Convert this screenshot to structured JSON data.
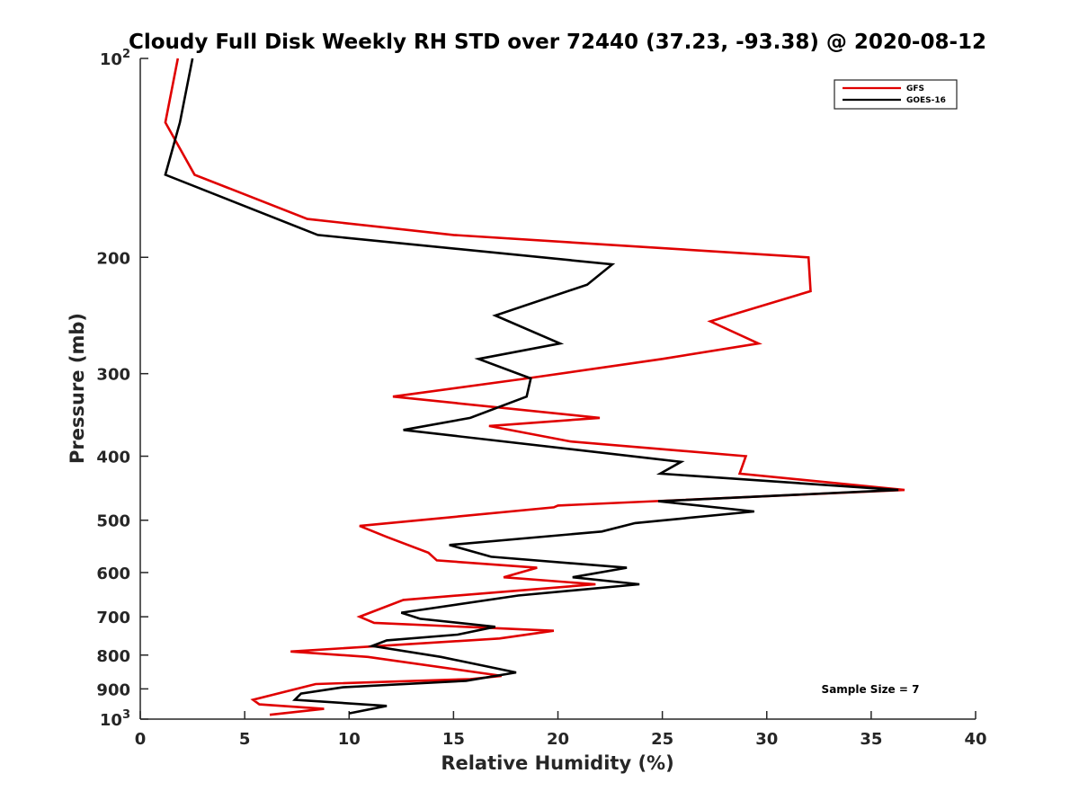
{
  "chart_data": {
    "type": "line",
    "title": "Cloudy Full Disk Weekly RH STD over 72440 (37.23, -93.38) @ 2020-08-12",
    "xlabel": "Relative Humidity (%)",
    "ylabel": "Pressure (mb)",
    "xlim": [
      0,
      40
    ],
    "ylim": [
      100,
      1000
    ],
    "y_scale": "log",
    "y_reversed": true,
    "x_ticks": [
      "0",
      "5",
      "10",
      "15",
      "20",
      "25",
      "30",
      "35",
      "40"
    ],
    "y_ticks": [
      {
        "value": 100,
        "base": "10",
        "exp": "2"
      },
      {
        "value": 200,
        "label": "200"
      },
      {
        "value": 300,
        "label": "300"
      },
      {
        "value": 400,
        "label": "400"
      },
      {
        "value": 500,
        "label": "500"
      },
      {
        "value": 600,
        "label": "600"
      },
      {
        "value": 700,
        "label": "700"
      },
      {
        "value": 800,
        "label": "800"
      },
      {
        "value": 900,
        "label": "900"
      },
      {
        "value": 1000,
        "base": "10",
        "exp": "3"
      }
    ],
    "legend_position": "top-right",
    "grid": false,
    "annotation": "Sample Size = 7",
    "series": [
      {
        "name": "GFS",
        "color": "#e00000",
        "points": [
          [
            1.8,
            100
          ],
          [
            1.2,
            125
          ],
          [
            2.6,
            150
          ],
          [
            8.0,
            175
          ],
          [
            15.0,
            185
          ],
          [
            32.0,
            200
          ],
          [
            32.1,
            225
          ],
          [
            27.3,
            250
          ],
          [
            29.6,
            270
          ],
          [
            25.0,
            285
          ],
          [
            18.5,
            305
          ],
          [
            12.1,
            325
          ],
          [
            22.0,
            350
          ],
          [
            16.7,
            360
          ],
          [
            20.6,
            380
          ],
          [
            29.0,
            400
          ],
          [
            28.7,
            425
          ],
          [
            36.6,
            450
          ],
          [
            20.0,
            475
          ],
          [
            19.8,
            478
          ],
          [
            10.5,
            510
          ],
          [
            11.8,
            530
          ],
          [
            13.8,
            560
          ],
          [
            14.2,
            575
          ],
          [
            19.0,
            590
          ],
          [
            17.4,
            610
          ],
          [
            21.8,
            625
          ],
          [
            12.6,
            660
          ],
          [
            10.5,
            700
          ],
          [
            11.2,
            715
          ],
          [
            19.8,
            735
          ],
          [
            17.2,
            755
          ],
          [
            7.2,
            790
          ],
          [
            10.9,
            805
          ],
          [
            17.3,
            860
          ],
          [
            15.8,
            870
          ],
          [
            8.4,
            885
          ],
          [
            5.4,
            935
          ],
          [
            5.7,
            950
          ],
          [
            8.8,
            965
          ],
          [
            6.2,
            985
          ]
        ]
      },
      {
        "name": "GOES-16",
        "color": "#000000",
        "points": [
          [
            2.5,
            100
          ],
          [
            1.9,
            125
          ],
          [
            1.2,
            150
          ],
          [
            8.5,
            185
          ],
          [
            22.6,
            205
          ],
          [
            21.4,
            220
          ],
          [
            17.0,
            245
          ],
          [
            20.1,
            270
          ],
          [
            16.2,
            285
          ],
          [
            18.7,
            305
          ],
          [
            18.5,
            325
          ],
          [
            15.8,
            350
          ],
          [
            12.6,
            365
          ],
          [
            25.9,
            408
          ],
          [
            24.9,
            425
          ],
          [
            36.3,
            450
          ],
          [
            24.8,
            468
          ],
          [
            29.4,
            485
          ],
          [
            23.7,
            505
          ],
          [
            22.1,
            520
          ],
          [
            14.8,
            545
          ],
          [
            16.8,
            568
          ],
          [
            23.3,
            590
          ],
          [
            20.7,
            610
          ],
          [
            23.9,
            625
          ],
          [
            18.1,
            650
          ],
          [
            12.5,
            690
          ],
          [
            13.4,
            705
          ],
          [
            17.0,
            725
          ],
          [
            15.2,
            745
          ],
          [
            11.8,
            760
          ],
          [
            11.1,
            775
          ],
          [
            14.4,
            805
          ],
          [
            18.0,
            850
          ],
          [
            15.6,
            875
          ],
          [
            9.7,
            895
          ],
          [
            7.7,
            915
          ],
          [
            7.4,
            935
          ],
          [
            11.8,
            955
          ],
          [
            10.0,
            980
          ]
        ]
      }
    ]
  }
}
